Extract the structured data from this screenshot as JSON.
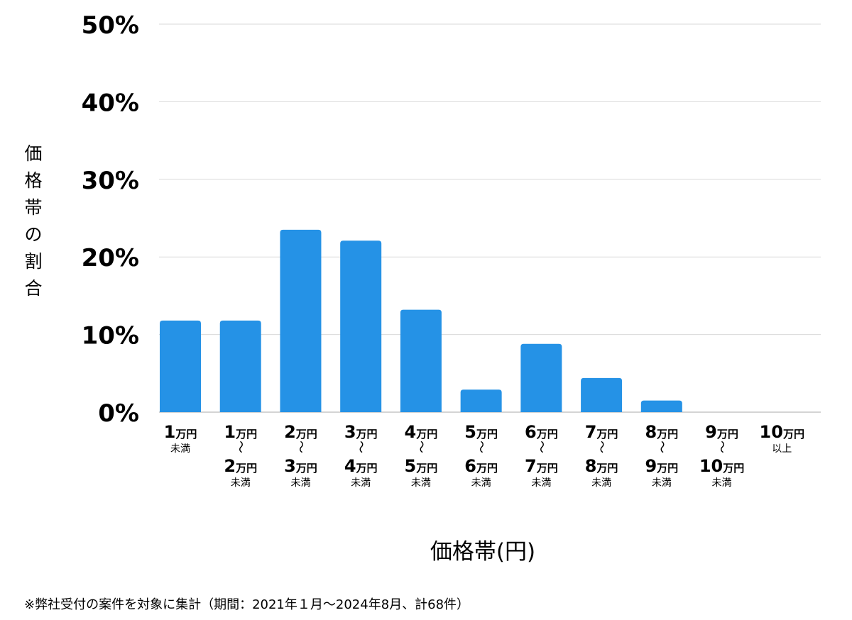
{
  "chart_data": {
    "type": "bar",
    "title": "",
    "ylabel": "価格帯の割合",
    "xlabel": "価格帯(円)",
    "ylim": [
      0,
      50
    ],
    "yticks": [
      "0%",
      "10%",
      "20%",
      "30%",
      "40%",
      "50%"
    ],
    "grid": true,
    "bar_color": "#2592e6",
    "categories": [
      [
        "1",
        "万円",
        "未満"
      ],
      [
        "1",
        "万円",
        "〜",
        "2",
        "万円",
        "未満"
      ],
      [
        "2",
        "万円",
        "〜",
        "3",
        "万円",
        "未満"
      ],
      [
        "3",
        "万円",
        "〜",
        "4",
        "万円",
        "未満"
      ],
      [
        "4",
        "万円",
        "〜",
        "5",
        "万円",
        "未満"
      ],
      [
        "5",
        "万円",
        "〜",
        "6",
        "万円",
        "未満"
      ],
      [
        "6",
        "万円",
        "〜",
        "7",
        "万円",
        "未満"
      ],
      [
        "7",
        "万円",
        "〜",
        "8",
        "万円",
        "未満"
      ],
      [
        "8",
        "万円",
        "〜",
        "9",
        "万円",
        "未満"
      ],
      [
        "9",
        "万円",
        "〜",
        "10",
        "万円",
        "未満"
      ],
      [
        "10",
        "万円",
        "以上"
      ]
    ],
    "values": [
      11.8,
      11.8,
      23.5,
      22.1,
      13.2,
      2.9,
      8.8,
      4.4,
      1.5,
      0,
      0
    ]
  },
  "footnote": "※弊社受付の案件を対象に集計（期間：2021年１月〜2024年8月、計68件）"
}
